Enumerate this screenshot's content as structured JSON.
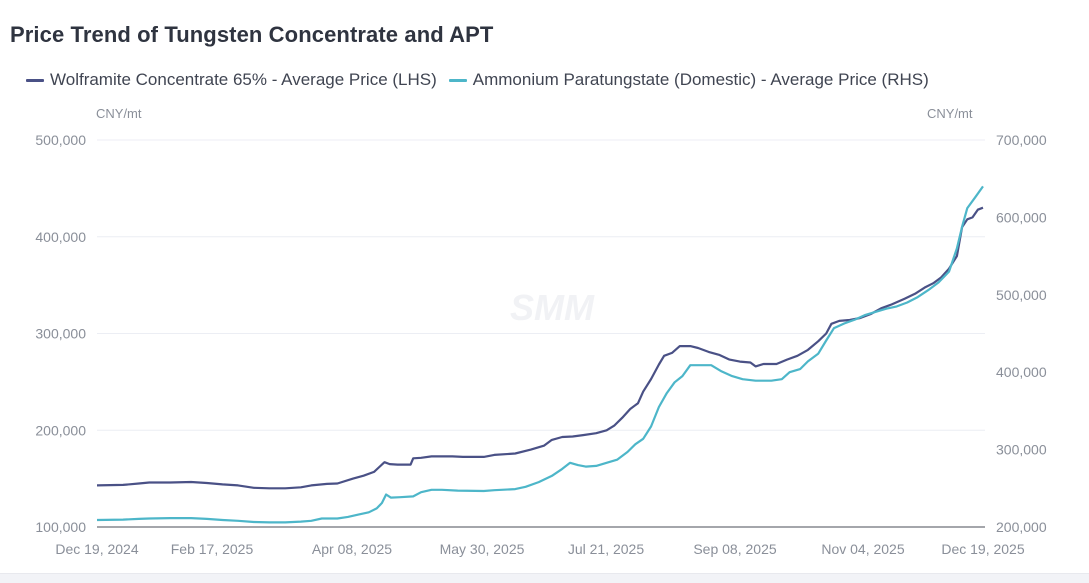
{
  "chart_data": {
    "type": "line",
    "title": "Price Trend of Tungsten Concentrate and APT",
    "watermark": "SMM",
    "x_start": "2024-12-19",
    "x_end": "2025-12-19",
    "x_tick_labels": [
      "Dec 19, 2024",
      "Feb 17, 2025",
      "Apr 08, 2025",
      "May 30, 2025",
      "Jul 21, 2025",
      "Sep 08, 2025",
      "Nov 04, 2025",
      "Dec 19, 2025"
    ],
    "y_left": {
      "unit": "CNY/mt",
      "ylim": [
        100000,
        500000
      ],
      "ticks": [
        "100,000",
        "200,000",
        "300,000",
        "400,000",
        "500,000"
      ],
      "tick_values": [
        100000,
        200000,
        300000,
        400000,
        500000
      ]
    },
    "y_right": {
      "unit": "CNY/mt",
      "ylim": [
        200000,
        700000
      ],
      "ticks": [
        "200,000",
        "300,000",
        "400,000",
        "500,000",
        "600,000",
        "700,000"
      ],
      "tick_values": [
        200000,
        300000,
        400000,
        500000,
        600000,
        700000
      ]
    },
    "grid": true,
    "legend_position": "top-left",
    "series": [
      {
        "name": "Wolframite Concentrate 65% - Average Price (LHS)",
        "axis": "left",
        "color": "#4a5186",
        "points": [
          [
            0.0,
            143000
          ],
          [
            0.05,
            143500
          ],
          [
            0.08,
            145000
          ],
          [
            0.1,
            146000
          ],
          [
            0.14,
            146000
          ],
          [
            0.18,
            146500
          ],
          [
            0.21,
            145500
          ],
          [
            0.24,
            144000
          ],
          [
            0.27,
            143000
          ],
          [
            0.3,
            140500
          ],
          [
            0.33,
            140000
          ],
          [
            0.36,
            140000
          ],
          [
            0.39,
            141000
          ],
          [
            0.41,
            143000
          ],
          [
            0.44,
            144500
          ],
          [
            0.46,
            145000
          ],
          [
            0.49,
            150000
          ],
          [
            0.51,
            153000
          ],
          [
            0.53,
            157000
          ],
          [
            0.54,
            162000
          ],
          [
            0.55,
            167000
          ],
          [
            0.56,
            165000
          ],
          [
            0.575,
            164500
          ],
          [
            0.6,
            164500
          ],
          [
            0.605,
            171000
          ],
          [
            0.62,
            171500
          ],
          [
            0.64,
            173000
          ],
          [
            0.68,
            173000
          ],
          [
            0.7,
            172500
          ],
          [
            0.74,
            172500
          ],
          [
            0.76,
            174500
          ],
          [
            0.8,
            176000
          ],
          [
            0.83,
            180000
          ],
          [
            0.855,
            184000
          ],
          [
            0.87,
            190000
          ],
          [
            0.89,
            193000
          ],
          [
            0.91,
            193500
          ],
          [
            0.93,
            195000
          ],
          [
            0.955,
            197000
          ],
          [
            0.975,
            200000
          ],
          [
            0.99,
            205000
          ],
          [
            1.005,
            213000
          ],
          [
            1.02,
            222000
          ],
          [
            1.035,
            228000
          ],
          [
            1.045,
            240000
          ],
          [
            1.06,
            253000
          ],
          [
            1.075,
            268000
          ],
          [
            1.085,
            277000
          ],
          [
            1.1,
            280000
          ],
          [
            1.115,
            287000
          ],
          [
            1.135,
            287000
          ],
          [
            1.15,
            285000
          ],
          [
            1.17,
            281000
          ],
          [
            1.19,
            278000
          ],
          [
            1.21,
            273000
          ],
          [
            1.23,
            271000
          ],
          [
            1.25,
            270000
          ],
          [
            1.26,
            266000
          ],
          [
            1.275,
            268500
          ],
          [
            1.3,
            268500
          ],
          [
            1.32,
            273000
          ],
          [
            1.34,
            277000
          ],
          [
            1.36,
            283000
          ],
          [
            1.38,
            292000
          ],
          [
            1.395,
            300000
          ],
          [
            1.405,
            310000
          ],
          [
            1.42,
            313000
          ],
          [
            1.44,
            314000
          ],
          [
            1.46,
            316000
          ],
          [
            1.48,
            320000
          ],
          [
            1.5,
            326000
          ],
          [
            1.52,
            330000
          ],
          [
            1.545,
            336000
          ],
          [
            1.565,
            341000
          ],
          [
            1.585,
            348000
          ],
          [
            1.6,
            352000
          ],
          [
            1.615,
            358000
          ],
          [
            1.63,
            367000
          ],
          [
            1.645,
            380000
          ],
          [
            1.655,
            410000
          ],
          [
            1.665,
            418000
          ],
          [
            1.675,
            420000
          ],
          [
            1.685,
            428000
          ],
          [
            1.695,
            430000
          ]
        ]
      },
      {
        "name": "Ammonium Paratungstate (Domestic) - Average Price (RHS)",
        "axis": "right",
        "color": "#4db6c9",
        "points": [
          [
            0.0,
            209000
          ],
          [
            0.05,
            209500
          ],
          [
            0.08,
            210500
          ],
          [
            0.1,
            211000
          ],
          [
            0.14,
            211500
          ],
          [
            0.18,
            211500
          ],
          [
            0.21,
            210500
          ],
          [
            0.24,
            209000
          ],
          [
            0.27,
            208000
          ],
          [
            0.3,
            206500
          ],
          [
            0.33,
            206000
          ],
          [
            0.36,
            206000
          ],
          [
            0.39,
            207000
          ],
          [
            0.41,
            208000
          ],
          [
            0.43,
            211000
          ],
          [
            0.46,
            211000
          ],
          [
            0.48,
            213000
          ],
          [
            0.5,
            216000
          ],
          [
            0.52,
            219000
          ],
          [
            0.535,
            224000
          ],
          [
            0.545,
            231000
          ],
          [
            0.553,
            242000
          ],
          [
            0.562,
            238000
          ],
          [
            0.58,
            238500
          ],
          [
            0.605,
            239500
          ],
          [
            0.62,
            245000
          ],
          [
            0.64,
            248000
          ],
          [
            0.66,
            248000
          ],
          [
            0.69,
            247000
          ],
          [
            0.74,
            246500
          ],
          [
            0.76,
            247500
          ],
          [
            0.8,
            249000
          ],
          [
            0.82,
            252000
          ],
          [
            0.845,
            258000
          ],
          [
            0.87,
            266000
          ],
          [
            0.89,
            275000
          ],
          [
            0.905,
            283000
          ],
          [
            0.92,
            280000
          ],
          [
            0.935,
            278000
          ],
          [
            0.955,
            279000
          ],
          [
            0.975,
            283000
          ],
          [
            0.995,
            287000
          ],
          [
            1.015,
            297000
          ],
          [
            1.03,
            307000
          ],
          [
            1.045,
            314000
          ],
          [
            1.06,
            330000
          ],
          [
            1.075,
            355000
          ],
          [
            1.09,
            373000
          ],
          [
            1.105,
            387000
          ],
          [
            1.12,
            395000
          ],
          [
            1.135,
            409000
          ],
          [
            1.175,
            409000
          ],
          [
            1.195,
            401000
          ],
          [
            1.215,
            395000
          ],
          [
            1.235,
            391000
          ],
          [
            1.26,
            389000
          ],
          [
            1.29,
            389000
          ],
          [
            1.31,
            391000
          ],
          [
            1.325,
            400000
          ],
          [
            1.345,
            404000
          ],
          [
            1.36,
            414000
          ],
          [
            1.38,
            424000
          ],
          [
            1.395,
            441000
          ],
          [
            1.41,
            457000
          ],
          [
            1.43,
            463000
          ],
          [
            1.45,
            468000
          ],
          [
            1.47,
            474000
          ],
          [
            1.49,
            478000
          ],
          [
            1.51,
            482000
          ],
          [
            1.53,
            485000
          ],
          [
            1.55,
            490000
          ],
          [
            1.57,
            497000
          ],
          [
            1.59,
            506000
          ],
          [
            1.61,
            516000
          ],
          [
            1.63,
            530000
          ],
          [
            1.645,
            560000
          ],
          [
            1.655,
            588000
          ],
          [
            1.665,
            612000
          ],
          [
            1.68,
            626000
          ],
          [
            1.695,
            640000
          ]
        ]
      }
    ]
  }
}
